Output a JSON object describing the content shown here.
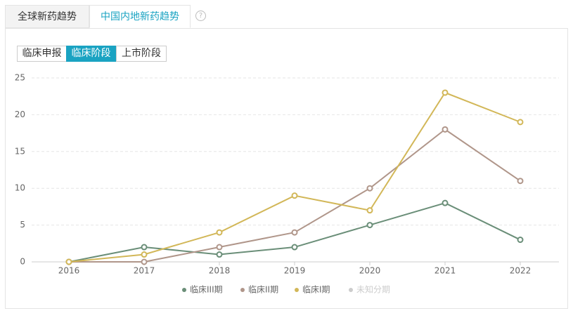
{
  "tabs": [
    "全球新药趋势",
    "中国内地新药趋势"
  ],
  "active_tab": 1,
  "buttons": [
    "临床申报",
    "临床阶段",
    "上市阶段"
  ],
  "active_button": 1,
  "chart_data": {
    "type": "line",
    "categories": [
      "2016",
      "2017",
      "2018",
      "2019",
      "2020",
      "2021",
      "2022"
    ],
    "series": [
      {
        "name": "临床III期",
        "color": "#6a8e78",
        "values": [
          0,
          2,
          1,
          2,
          5,
          8,
          3
        ]
      },
      {
        "name": "临床II期",
        "color": "#b0968a",
        "values": [
          0,
          0,
          2,
          4,
          10,
          18,
          11
        ]
      },
      {
        "name": "临床I期",
        "color": "#d2b758",
        "values": [
          0,
          1,
          4,
          9,
          7,
          23,
          19
        ]
      },
      {
        "name": "未知分期",
        "color": "#cccccc",
        "hidden": true
      }
    ],
    "ylim": [
      0,
      25
    ],
    "yticks": [
      0,
      5,
      10,
      15,
      20,
      25
    ],
    "grid": true
  }
}
